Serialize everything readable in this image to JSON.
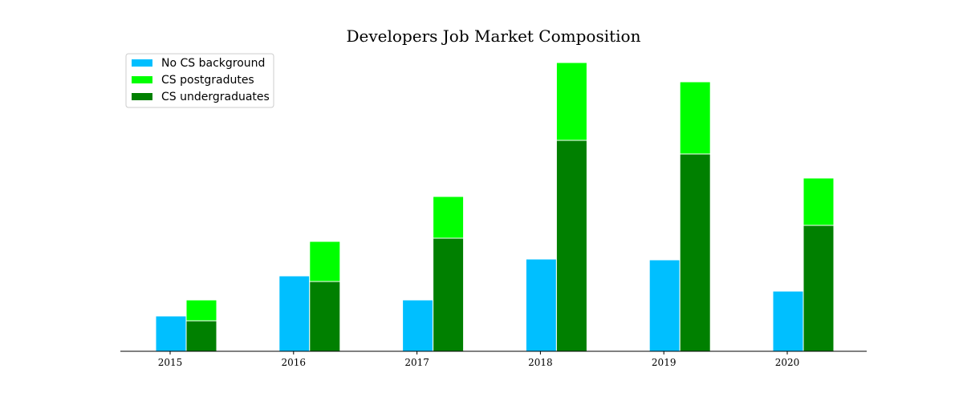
{
  "chart_data": {
    "type": "bar",
    "title": "Developers Job Market Composition",
    "xlabel": "",
    "ylabel": "",
    "categories": [
      "2015",
      "2016",
      "2017",
      "2018",
      "2019",
      "2020"
    ],
    "series": [
      {
        "name": "No CS background",
        "values": [
          44,
          94,
          64,
          115,
          114,
          75
        ],
        "color": "#00bfff",
        "stack": "left"
      },
      {
        "name": "CS undergraduates",
        "values": [
          38,
          87,
          141,
          263,
          246,
          157
        ],
        "color": "#008000",
        "stack": "right"
      },
      {
        "name": "CS postgradutes",
        "values": [
          26,
          50,
          52,
          97,
          90,
          59
        ],
        "color": "#00ff00",
        "stack": "right"
      }
    ],
    "legend_order": [
      "No CS background",
      "CS postgradutes",
      "CS undergraduates"
    ],
    "ylim": [
      0,
      370
    ],
    "grid": false,
    "legend_position": "upper-left",
    "y_axis_shown": false
  }
}
